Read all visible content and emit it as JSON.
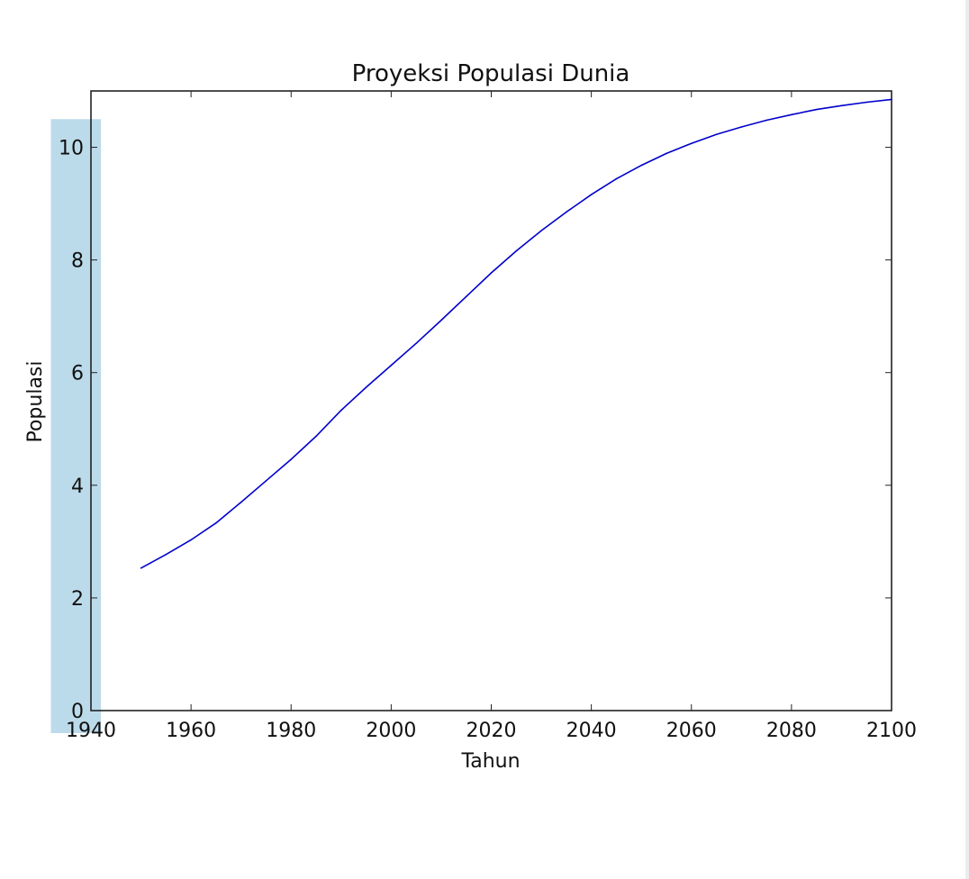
{
  "chart_data": {
    "type": "line",
    "title": "Proyeksi Populasi Dunia",
    "xlabel": "Tahun",
    "ylabel": "Populasi",
    "xlim": [
      1940,
      2100
    ],
    "ylim": [
      0,
      11
    ],
    "xticks": [
      1940,
      1960,
      1980,
      2000,
      2020,
      2040,
      2060,
      2080,
      2100
    ],
    "yticks": [
      0,
      2,
      4,
      6,
      8,
      10
    ],
    "grid": false,
    "line_color": "#0000cc",
    "highlight_color": "#bcdbea",
    "highlight": {
      "x_from": 1932,
      "x_to": 1942,
      "y_from": -0.4,
      "y_to": 10.5
    },
    "series": [
      {
        "x": [
          1950,
          1955,
          1960,
          1965,
          1970,
          1975,
          1980,
          1985,
          1990,
          1995,
          2000,
          2005,
          2010,
          2015,
          2020,
          2025,
          2030,
          2035,
          2040,
          2045,
          2050,
          2055,
          2060,
          2065,
          2070,
          2075,
          2080,
          2085,
          2090,
          2095,
          2100
        ],
        "y": [
          2.53,
          2.77,
          3.03,
          3.33,
          3.7,
          4.08,
          4.46,
          4.87,
          5.33,
          5.74,
          6.13,
          6.52,
          6.93,
          7.35,
          7.77,
          8.16,
          8.52,
          8.85,
          9.16,
          9.44,
          9.68,
          9.89,
          10.07,
          10.23,
          10.36,
          10.48,
          10.58,
          10.67,
          10.74,
          10.8,
          10.85
        ]
      }
    ]
  }
}
